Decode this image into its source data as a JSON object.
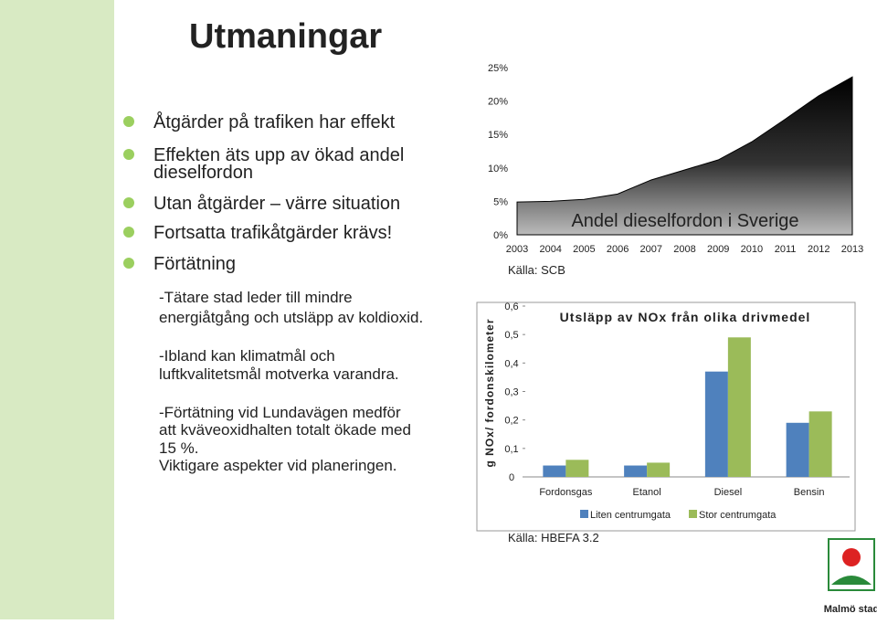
{
  "title": "Utmaningar",
  "bullets": [
    [
      "Åtgärder på trafiken har effekt"
    ],
    [
      "Effekten äts upp av ökad andel",
      "dieselfordon"
    ],
    [
      "Utan åtgärder – värre situation"
    ],
    [
      "Fortsatta trafikåtgärder krävs!"
    ],
    [
      "Förtätning"
    ]
  ],
  "paragraphs": [
    [
      "-Tätare stad leder till mindre",
      "energiåtgång och utsläpp av koldioxid."
    ],
    [
      "-Ibland kan klimatmål och",
      "luftkvalitetsmål motverka varandra."
    ],
    [
      "-Förtätning vid Lundavägen medför",
      "att kväveoxidhalten totalt ökade med",
      "15 %.",
      "Viktigare aspekter vid planeringen."
    ]
  ],
  "logo": {
    "text": "Malmö stad"
  },
  "chart_data": [
    {
      "type": "area",
      "title": "Andel dieselfordon i Sverige",
      "source": "Källa: SCB",
      "x": [
        2003,
        2004,
        2005,
        2006,
        2007,
        2008,
        2009,
        2010,
        2011,
        2012,
        2013
      ],
      "xlim": [
        2003,
        2013
      ],
      "series": [
        {
          "color": "#000000",
          "values": [
            4.9,
            5.0,
            5.3,
            6.1,
            8.2,
            9.7,
            11.2,
            13.9,
            17.3,
            20.8,
            23.6
          ]
        }
      ],
      "ylim": [
        0,
        25
      ],
      "yticks": [
        {
          "value": 0,
          "label": "0%"
        },
        {
          "value": 5,
          "label": "5%"
        },
        {
          "value": 10,
          "label": "10%"
        },
        {
          "value": 15,
          "label": "15%"
        },
        {
          "value": 20,
          "label": "20%"
        },
        {
          "value": 25,
          "label": "25%"
        }
      ]
    },
    {
      "type": "bar",
      "title": "Utsläpp av NOx från olika drivmedel",
      "source": "Källa: HBEFA 3.2",
      "y_label": "g NOx/ fordonskilometer",
      "categories": [
        "Fordonsgas",
        "Etanol",
        "Diesel",
        "Bensin"
      ],
      "series": [
        {
          "name": "Liten centrumgata",
          "color": "#4f81bd",
          "values": [
            0.04,
            0.04,
            0.37,
            0.19
          ]
        },
        {
          "name": "Stor centrumgata",
          "color": "#9bbb59",
          "values": [
            0.06,
            0.05,
            0.49,
            0.23
          ]
        }
      ],
      "ylim": [
        0,
        0.6
      ],
      "yticks": [
        0,
        {
          "value": 0.1,
          "label": "0,1"
        },
        {
          "value": 0.2,
          "label": "0,2"
        },
        {
          "value": 0.3,
          "label": "0,3"
        },
        {
          "value": 0.4,
          "label": "0,4"
        },
        {
          "value": 0.5,
          "label": "0,5"
        },
        {
          "value": 0.6,
          "label": "0,6"
        }
      ]
    }
  ]
}
